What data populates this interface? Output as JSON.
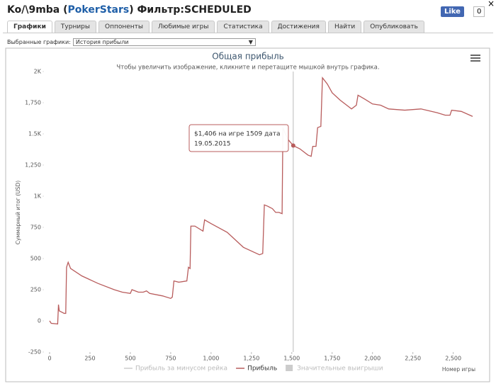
{
  "header": {
    "title_name": "Ko/\\9mba (",
    "title_site": "PokerStars",
    "title_rest": ") Фильтр:SCHEDULED",
    "like": "Like",
    "like_count": "0",
    "close": "×"
  },
  "tabs": [
    "Графики",
    "Турниры",
    "Оппоненты",
    "Любимые игры",
    "Статистика",
    "Достижения",
    "Найти",
    "Опубликовать"
  ],
  "selector": {
    "label": "Выбранные графики:",
    "value": "История прибыли"
  },
  "chart_data": {
    "type": "line",
    "title": "Общая прибыль",
    "subtitle": "Чтобы увеличить изображение, кликните и перетащите мышкой внутрь графика.",
    "x_label": "Номер игры",
    "y_label": "Суммарный итог (USD)",
    "xlim": [
      0,
      2620
    ],
    "ylim": [
      -250,
      2000
    ],
    "xticks": [
      0,
      250,
      500,
      750,
      {
        "value": 1000,
        "label": "1,000"
      },
      {
        "value": 1250,
        "label": "1,250"
      },
      {
        "value": 1500,
        "label": "1,500"
      },
      {
        "value": 1750,
        "label": "1,750"
      },
      {
        "value": 2000,
        "label": "2,000"
      },
      {
        "value": 2250,
        "label": "2,250"
      },
      {
        "value": 2500,
        "label": "2,500"
      }
    ],
    "yticks": [
      -250,
      0,
      250,
      500,
      750,
      {
        "value": 1000,
        "label": "1K"
      },
      {
        "value": 1250,
        "label": "1,250"
      },
      {
        "value": 1500,
        "label": "1.5K"
      },
      {
        "value": 1750,
        "label": "1,750"
      },
      {
        "value": 2000,
        "label": "2K"
      }
    ],
    "grid": false,
    "series": [
      {
        "name": "Прибыль",
        "color": "#b85c5c",
        "x": [
          0,
          10,
          50,
          55,
          60,
          90,
          100,
          105,
          115,
          130,
          200,
          300,
          400,
          450,
          500,
          510,
          550,
          580,
          600,
          620,
          700,
          750,
          760,
          770,
          800,
          850,
          860,
          870,
          875,
          900,
          950,
          960,
          1000,
          1100,
          1200,
          1300,
          1320,
          1330,
          1350,
          1380,
          1400,
          1420,
          1440,
          1445,
          1460,
          1480,
          1500,
          1509,
          1550,
          1600,
          1620,
          1630,
          1650,
          1660,
          1680,
          1690,
          1720,
          1750,
          1800,
          1850,
          1870,
          1900,
          1910,
          1950,
          2000,
          2050,
          2100,
          2200,
          2300,
          2400,
          2450,
          2480,
          2490,
          2550,
          2620
        ],
        "values": [
          0,
          -20,
          -25,
          130,
          80,
          60,
          60,
          430,
          470,
          420,
          360,
          300,
          250,
          230,
          220,
          250,
          230,
          230,
          240,
          220,
          200,
          180,
          190,
          320,
          310,
          320,
          430,
          420,
          760,
          760,
          720,
          810,
          780,
          710,
          590,
          530,
          540,
          930,
          920,
          900,
          870,
          870,
          860,
          1550,
          1500,
          1450,
          1420,
          1406,
          1380,
          1330,
          1320,
          1400,
          1400,
          1550,
          1560,
          1950,
          1900,
          1830,
          1770,
          1720,
          1700,
          1730,
          1810,
          1780,
          1740,
          1730,
          1700,
          1690,
          1700,
          1670,
          1650,
          1650,
          1690,
          1680,
          1640
        ]
      }
    ],
    "legend_items": [
      {
        "name": "Прибыль за минусом рейка",
        "color": "#cccccc"
      },
      {
        "name": "Прибыль",
        "color": "#b85c5c"
      },
      {
        "name": "Значительные выигрыши",
        "color": "#cccccc"
      }
    ],
    "tooltip": {
      "line1": "$1,406 на игре 1509 дата",
      "line2": "19.05.2015"
    }
  }
}
